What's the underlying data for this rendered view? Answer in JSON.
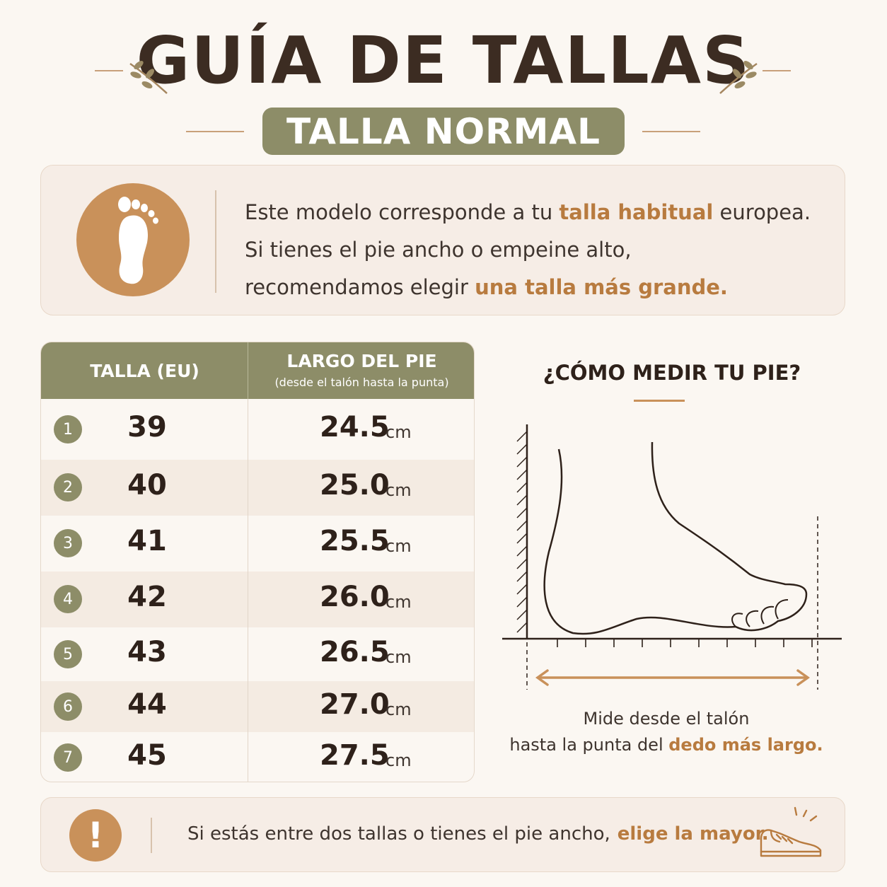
{
  "header": {
    "title": "GUÍA DE TALLAS",
    "badge": "TALLA NORMAL"
  },
  "intro": {
    "line1_a": "Este modelo corresponde a tu ",
    "line1_hl": "talla habitual",
    "line1_b": " europea.",
    "line2": "Si tienes el pie ancho o empeine alto,",
    "line3_a": "recomendamos elegir ",
    "line3_hl": "una talla más grande."
  },
  "table": {
    "col_size": "TALLA (EU)",
    "col_length": "LARGO DEL PIE",
    "col_length_sub": "(desde el talón hasta la punta)",
    "unit": "cm",
    "rows": [
      {
        "num": "1",
        "size": "39",
        "length": "24.5"
      },
      {
        "num": "2",
        "size": "40",
        "length": "25.0"
      },
      {
        "num": "3",
        "size": "41",
        "length": "25.5"
      },
      {
        "num": "4",
        "size": "42",
        "length": "26.0"
      },
      {
        "num": "5",
        "size": "43",
        "length": "26.5"
      },
      {
        "num": "6",
        "size": "44",
        "length": "27.0"
      },
      {
        "num": "7",
        "size": "45",
        "length": "27.5"
      }
    ]
  },
  "measure": {
    "title": "¿CÓMO MEDIR TU PIE?",
    "caption_line1": "Mide desde el talón",
    "caption_line2_a": "hasta la punta del ",
    "caption_line2_hl": "dedo más largo."
  },
  "note": {
    "text": "Si estás entre dos tallas o tienes el pie ancho,",
    "highlight": "elige la mayor.",
    "icon": "exclamation-icon"
  },
  "colors": {
    "background": "#fbf7f2",
    "olive": "#8d8d68",
    "accent": "#c9915a",
    "highlight_text": "#b87b3f"
  }
}
